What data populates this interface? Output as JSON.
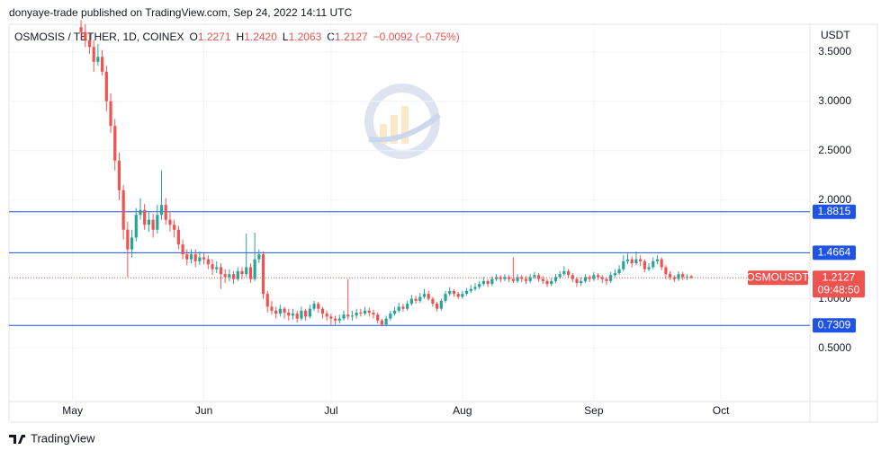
{
  "header": "donyaye-trade published on TradingView.com, Sep 24, 2022 14:11 UTC",
  "footer": "TradingView",
  "chart_data": {
    "type": "candlestick",
    "symbol": "OSMOSIS / TETHER, 1D, COINEX",
    "ohlc_legend": [
      {
        "label": "O",
        "value": "1.2271"
      },
      {
        "label": "H",
        "value": "1.2420"
      },
      {
        "label": "L",
        "value": "1.2063"
      },
      {
        "label": "C",
        "value": "1.2127"
      }
    ],
    "change": "−0.0092 (−0.75%)",
    "currency": "USDT",
    "up_color": "#26a69a",
    "down_color": "#ef5350",
    "level_color": "#1e53e5",
    "grid": true,
    "xlim": [
      -15,
      174
    ],
    "xticks": [
      {
        "value": 0,
        "label": "May"
      },
      {
        "value": 31,
        "label": "Jun"
      },
      {
        "value": 61,
        "label": "Jul"
      },
      {
        "value": 92,
        "label": "Aug"
      },
      {
        "value": 123,
        "label": "Sep"
      },
      {
        "value": 153,
        "label": "Oct"
      }
    ],
    "ylim": [
      -0.04,
      3.78
    ],
    "yticks": [
      {
        "value": 0.5,
        "label": "0.5000"
      },
      {
        "value": 1.0,
        "label": "1.0000"
      },
      {
        "value": 2.0,
        "label": "2.0000"
      },
      {
        "value": 2.5,
        "label": "2.5000"
      },
      {
        "value": 3.0,
        "label": "3.0000"
      },
      {
        "value": 3.5,
        "label": "3.5000"
      }
    ],
    "levels": [
      1.8815,
      1.4664,
      0.7309
    ],
    "last_price": 1.2127,
    "last_tag": "OSMOUSDT",
    "countdown": "09:48:50",
    "x": [
      2,
      3,
      4,
      5,
      6,
      7,
      8,
      9,
      10,
      11,
      12,
      13,
      14,
      15,
      16,
      17,
      18,
      19,
      20,
      21,
      22,
      23,
      24,
      25,
      26,
      27,
      28,
      29,
      30,
      31,
      32,
      33,
      34,
      35,
      36,
      37,
      38,
      39,
      40,
      41,
      42,
      43,
      44,
      45,
      46,
      47,
      48,
      49,
      50,
      51,
      52,
      53,
      54,
      55,
      56,
      57,
      58,
      59,
      60,
      61,
      62,
      63,
      64,
      65,
      66,
      67,
      68,
      69,
      70,
      71,
      72,
      73,
      74,
      75,
      76,
      77,
      78,
      79,
      80,
      81,
      82,
      83,
      84,
      85,
      86,
      87,
      88,
      89,
      90,
      91,
      92,
      93,
      94,
      95,
      96,
      97,
      98,
      99,
      100,
      101,
      102,
      103,
      104,
      105,
      106,
      107,
      108,
      109,
      110,
      111,
      112,
      113,
      114,
      115,
      116,
      117,
      118,
      119,
      120,
      121,
      122,
      123,
      124,
      125,
      126,
      127,
      128,
      129,
      130,
      131,
      132,
      133,
      134,
      135,
      136,
      137,
      138,
      139,
      140,
      141,
      142,
      143,
      144,
      145,
      146
    ],
    "open": [
      3.75,
      3.7,
      3.62,
      3.55,
      3.4,
      3.45,
      3.3,
      3.0,
      2.75,
      2.4,
      2.1,
      1.7,
      1.5,
      1.62,
      1.85,
      1.9,
      1.75,
      1.8,
      1.7,
      1.85,
      1.95,
      1.8,
      1.75,
      1.7,
      1.55,
      1.45,
      1.4,
      1.45,
      1.38,
      1.42,
      1.4,
      1.35,
      1.3,
      1.32,
      1.25,
      1.22,
      1.25,
      1.2,
      1.28,
      1.25,
      1.32,
      1.2,
      1.4,
      1.45,
      1.05,
      0.92,
      0.88,
      0.85,
      0.9,
      0.86,
      0.83,
      0.85,
      0.8,
      0.88,
      0.82,
      0.9,
      0.95,
      0.9,
      0.85,
      0.82,
      0.8,
      0.78,
      0.8,
      0.84,
      0.82,
      0.83,
      0.86,
      0.85,
      0.88,
      0.86,
      0.84,
      0.78,
      0.74,
      0.8,
      0.85,
      0.88,
      0.92,
      0.9,
      0.95,
      1.0,
      0.98,
      1.02,
      1.05,
      1.0,
      0.95,
      0.9,
      0.98,
      1.05,
      1.08,
      1.05,
      1.02,
      1.05,
      1.08,
      1.1,
      1.12,
      1.15,
      1.18,
      1.15,
      1.2,
      1.22,
      1.2,
      1.22,
      1.2,
      1.18,
      1.22,
      1.2,
      1.18,
      1.22,
      1.24,
      1.2,
      1.18,
      1.15,
      1.18,
      1.22,
      1.25,
      1.28,
      1.24,
      1.2,
      1.16,
      1.18,
      1.22,
      1.2,
      1.24,
      1.22,
      1.2,
      1.18,
      1.24,
      1.26,
      1.3,
      1.38,
      1.4,
      1.36,
      1.4,
      1.38,
      1.3,
      1.32,
      1.38,
      1.4,
      1.32,
      1.25,
      1.22,
      1.2,
      1.25,
      1.22,
      1.2271
    ],
    "high": [
      3.82,
      3.78,
      3.7,
      3.62,
      3.58,
      3.52,
      3.36,
      3.08,
      2.82,
      2.48,
      2.15,
      1.78,
      1.7,
      1.92,
      2.02,
      1.96,
      1.88,
      1.86,
      1.95,
      2.3,
      2.02,
      1.88,
      1.8,
      1.74,
      1.6,
      1.5,
      1.5,
      1.5,
      1.48,
      1.46,
      1.44,
      1.4,
      1.38,
      1.36,
      1.3,
      1.3,
      1.28,
      1.32,
      1.32,
      1.66,
      1.36,
      1.67,
      1.5,
      1.48,
      1.08,
      0.98,
      0.92,
      0.94,
      0.92,
      0.9,
      0.9,
      0.88,
      0.92,
      0.9,
      0.94,
      0.98,
      0.97,
      0.92,
      0.88,
      0.85,
      0.83,
      0.84,
      0.88,
      1.2,
      0.88,
      0.9,
      0.9,
      0.92,
      0.91,
      0.89,
      0.86,
      0.8,
      0.83,
      0.88,
      0.92,
      0.96,
      0.95,
      0.98,
      1.04,
      1.03,
      1.06,
      1.1,
      1.08,
      1.02,
      0.97,
      1.0,
      1.08,
      1.12,
      1.1,
      1.07,
      1.08,
      1.11,
      1.14,
      1.16,
      1.18,
      1.22,
      1.2,
      1.23,
      1.25,
      1.24,
      1.25,
      1.24,
      1.42,
      1.25,
      1.24,
      1.23,
      1.25,
      1.27,
      1.26,
      1.23,
      1.2,
      1.21,
      1.25,
      1.28,
      1.33,
      1.3,
      1.26,
      1.22,
      1.22,
      1.25,
      1.24,
      1.27,
      1.26,
      1.24,
      1.22,
      1.27,
      1.3,
      1.34,
      1.44,
      1.46,
      1.43,
      1.48,
      1.44,
      1.4,
      1.36,
      1.42,
      1.44,
      1.42,
      1.34,
      1.28,
      1.24,
      1.28,
      1.27,
      1.25,
      1.242
    ],
    "low": [
      3.62,
      3.55,
      3.48,
      3.3,
      3.36,
      3.26,
      2.9,
      2.68,
      2.3,
      2.0,
      1.6,
      1.22,
      1.42,
      1.58,
      1.8,
      1.7,
      1.68,
      1.62,
      1.66,
      1.8,
      1.75,
      1.68,
      1.62,
      1.5,
      1.4,
      1.34,
      1.36,
      1.32,
      1.34,
      1.35,
      1.3,
      1.24,
      1.26,
      1.1,
      1.16,
      1.18,
      1.15,
      1.18,
      1.2,
      1.22,
      1.16,
      1.18,
      1.36,
      1.0,
      0.86,
      0.84,
      0.8,
      0.82,
      0.8,
      0.78,
      0.79,
      0.76,
      0.78,
      0.78,
      0.8,
      0.88,
      0.86,
      0.8,
      0.78,
      0.74,
      0.74,
      0.75,
      0.78,
      0.79,
      0.78,
      0.8,
      0.82,
      0.83,
      0.82,
      0.8,
      0.75,
      0.72,
      0.72,
      0.78,
      0.83,
      0.86,
      0.87,
      0.88,
      0.93,
      0.95,
      0.96,
      1.0,
      0.98,
      0.92,
      0.87,
      0.88,
      0.96,
      1.03,
      1.02,
      1.0,
      1.0,
      1.03,
      1.06,
      1.08,
      1.1,
      1.13,
      1.12,
      1.13,
      1.18,
      1.17,
      1.18,
      1.17,
      1.16,
      1.16,
      1.17,
      1.15,
      1.16,
      1.2,
      1.17,
      1.15,
      1.12,
      1.13,
      1.16,
      1.2,
      1.23,
      1.21,
      1.17,
      1.12,
      1.13,
      1.16,
      1.17,
      1.18,
      1.19,
      1.16,
      1.14,
      1.16,
      1.22,
      1.24,
      1.28,
      1.35,
      1.32,
      1.34,
      1.33,
      1.27,
      1.28,
      1.3,
      1.35,
      1.29,
      1.2,
      1.19,
      1.17,
      1.18,
      1.19,
      1.19,
      1.2063
    ],
    "close": [
      3.7,
      3.62,
      3.55,
      3.4,
      3.45,
      3.3,
      3.0,
      2.75,
      2.4,
      2.1,
      1.7,
      1.5,
      1.62,
      1.85,
      1.9,
      1.75,
      1.8,
      1.7,
      1.85,
      1.95,
      1.8,
      1.75,
      1.7,
      1.55,
      1.45,
      1.4,
      1.45,
      1.38,
      1.42,
      1.4,
      1.35,
      1.3,
      1.32,
      1.25,
      1.22,
      1.25,
      1.2,
      1.28,
      1.25,
      1.32,
      1.2,
      1.4,
      1.45,
      1.05,
      0.92,
      0.88,
      0.85,
      0.9,
      0.86,
      0.83,
      0.85,
      0.8,
      0.88,
      0.82,
      0.9,
      0.95,
      0.9,
      0.85,
      0.82,
      0.8,
      0.78,
      0.8,
      0.84,
      0.82,
      0.83,
      0.86,
      0.85,
      0.88,
      0.86,
      0.84,
      0.78,
      0.74,
      0.8,
      0.85,
      0.88,
      0.92,
      0.9,
      0.95,
      1.0,
      0.98,
      1.02,
      1.05,
      1.0,
      0.95,
      0.9,
      0.98,
      1.05,
      1.08,
      1.05,
      1.02,
      1.05,
      1.08,
      1.1,
      1.12,
      1.15,
      1.18,
      1.15,
      1.2,
      1.22,
      1.2,
      1.22,
      1.2,
      1.18,
      1.22,
      1.2,
      1.18,
      1.22,
      1.24,
      1.2,
      1.18,
      1.15,
      1.18,
      1.22,
      1.25,
      1.28,
      1.24,
      1.2,
      1.16,
      1.18,
      1.22,
      1.2,
      1.24,
      1.22,
      1.2,
      1.18,
      1.24,
      1.26,
      1.3,
      1.38,
      1.4,
      1.36,
      1.4,
      1.38,
      1.3,
      1.32,
      1.38,
      1.4,
      1.32,
      1.25,
      1.22,
      1.2,
      1.25,
      1.22,
      1.2219,
      1.2127
    ]
  }
}
